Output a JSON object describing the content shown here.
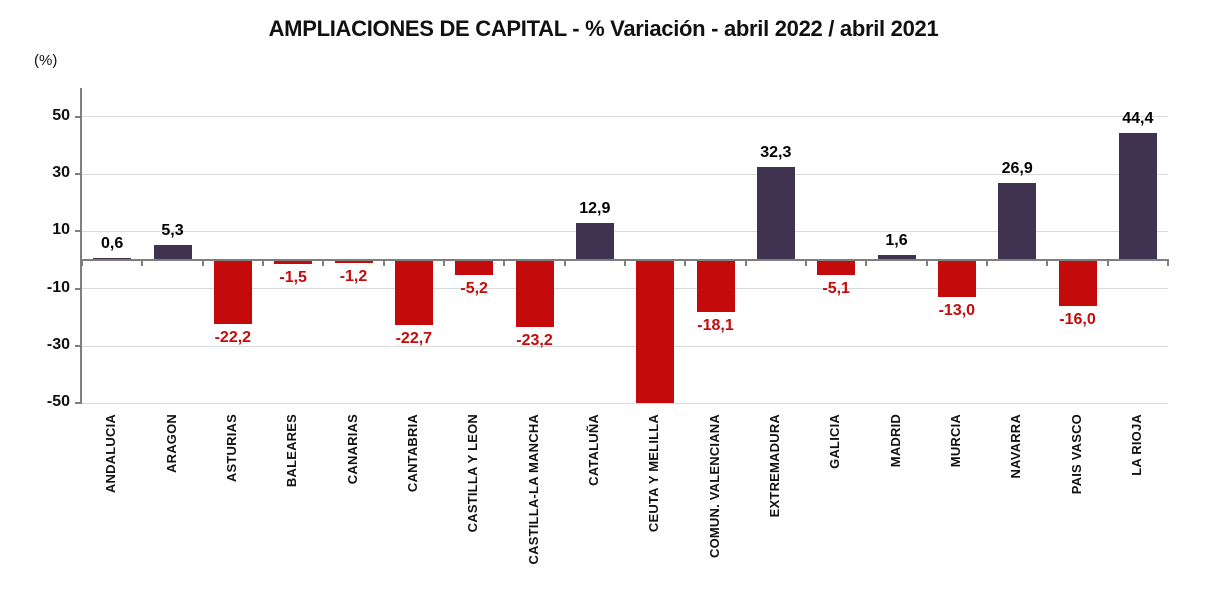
{
  "title": "AMPLIACIONES DE CAPITAL - % Variación - abril 2022 / abril 2021",
  "unit_label": "(%)",
  "chart_data": {
    "type": "bar",
    "title": "AMPLIACIONES DE CAPITAL - % Variación - abril 2022 / abril 2021",
    "xlabel": "",
    "ylabel": "(%)",
    "ylim": [
      -50,
      60
    ],
    "yticks": [
      50,
      30,
      10,
      -10,
      -30,
      -50
    ],
    "grid": true,
    "legend": false,
    "decimal_separator": ",",
    "categories": [
      "ANDALUCIA",
      "ARAGON",
      "ASTURIAS",
      "BALEARES",
      "CANARIAS",
      "CANTABRIA",
      "CASTILLA Y LEON",
      "CASTILLA-LA MANCHA",
      "CATALUÑA",
      "CEUTA Y MELILLA",
      "COMUN. VALENCIANA",
      "EXTREMADURA",
      "GALICIA",
      "MADRID",
      "MURCIA",
      "NAVARRA",
      "PAIS VASCO",
      "LA RIOJA"
    ],
    "values": [
      0.6,
      5.3,
      -22.2,
      -1.5,
      -1.2,
      -22.7,
      -5.2,
      -23.2,
      12.9,
      -50,
      -18.1,
      32.3,
      -5.1,
      1.6,
      -13.0,
      26.9,
      -16.0,
      44.4
    ],
    "value_labels": [
      "0,6",
      "5,3",
      "-22,2",
      "-1,5",
      "-1,2",
      "-22,7",
      "-5,2",
      "-23,2",
      "12,9",
      "",
      "-18,1",
      "32,3",
      "-5,1",
      "1,6",
      "-13,0",
      "26,9",
      "-16,0",
      "44,4"
    ],
    "clipped_at_ymin": [
      "CEUTA Y MELILLA"
    ],
    "colors": {
      "positive_bar": "#3F3351",
      "negative_bar": "#C40A0A",
      "positive_label": "#000000",
      "negative_label": "#C40A0A",
      "gridline": "#D9D9D9",
      "axis": "#7F7F7F",
      "title": "#111111"
    }
  }
}
